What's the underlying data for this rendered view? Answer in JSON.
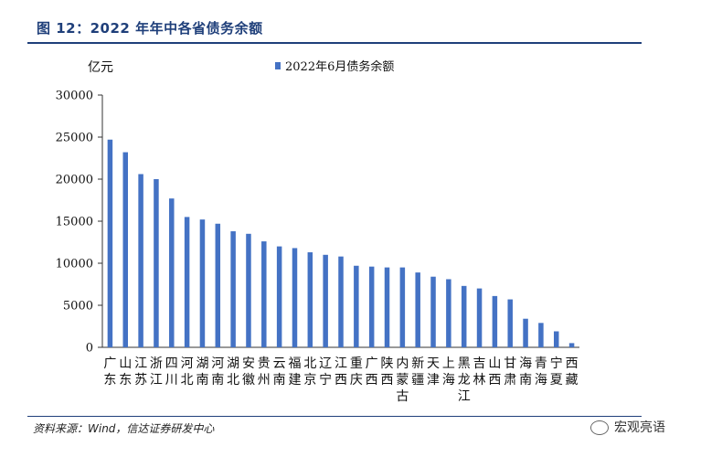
{
  "title": "图 12：2022 年年中各省债务余额",
  "source": "资料来源：Wind，信达证券研发中心",
  "watermark": "宏观亮语",
  "chart_data": {
    "type": "bar",
    "ylabel": "亿元",
    "ylim": [
      0,
      30000
    ],
    "yticks": [
      0,
      5000,
      10000,
      15000,
      20000,
      25000,
      30000
    ],
    "legend": "top",
    "grid": false,
    "bar_color": "#4472C4",
    "series": [
      {
        "name": "2022年6月债务余额",
        "values": [
          24700,
          23200,
          20600,
          20000,
          17700,
          15500,
          15200,
          14700,
          13800,
          13500,
          12600,
          12000,
          11800,
          11300,
          11000,
          10800,
          9700,
          9600,
          9500,
          9500,
          8900,
          8400,
          8100,
          7300,
          7000,
          6100,
          5700,
          3400,
          2900,
          1900,
          500
        ]
      }
    ],
    "categories": [
      "广东",
      "山东",
      "江苏",
      "浙江",
      "四川",
      "河北",
      "湖南",
      "河南",
      "湖北",
      "安徽",
      "贵州",
      "云南",
      "福建",
      "北京",
      "辽宁",
      "江西",
      "重庆",
      "广西",
      "陕西",
      "内蒙古",
      "新疆",
      "天津",
      "上海",
      "黑龙江",
      "吉林",
      "山西",
      "甘肃",
      "海南",
      "青海",
      "宁夏",
      "西藏"
    ]
  }
}
